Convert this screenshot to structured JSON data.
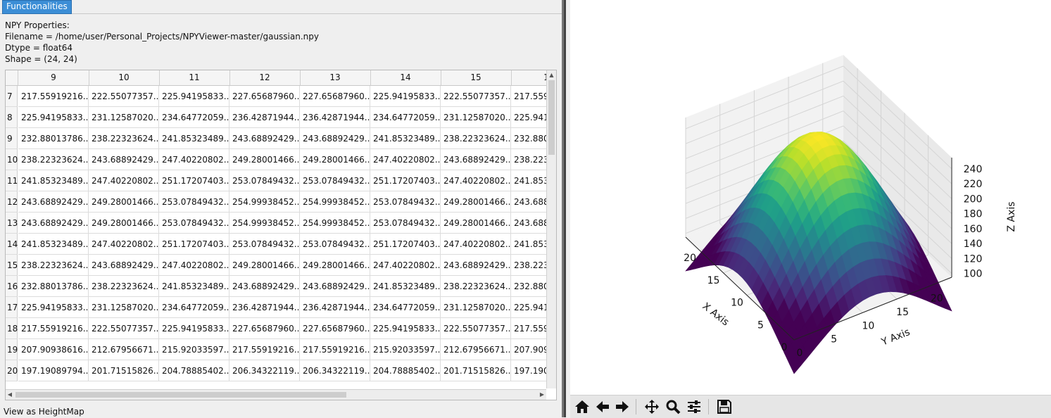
{
  "tab": {
    "label": "Functionalities"
  },
  "properties": {
    "heading": "NPY Properties:",
    "filename": "Filename = /home/user/Personal_Projects/NPYViewer-master/gaussian.npy",
    "dtype": "Dtype = float64",
    "shape": "Shape = (24, 24)"
  },
  "table": {
    "columns": [
      "9",
      "10",
      "11",
      "12",
      "13",
      "14",
      "15",
      "1"
    ],
    "rows": [
      {
        "label": "7",
        "cells": [
          "217.55919216...",
          "222.55077357...",
          "225.94195833...",
          "227.65687960...",
          "227.65687960...",
          "225.94195833...",
          "222.55077357...",
          "217.559"
        ]
      },
      {
        "label": "8",
        "cells": [
          "225.94195833...",
          "231.12587020...",
          "234.64772059...",
          "236.42871944...",
          "236.42871944...",
          "234.64772059...",
          "231.12587020...",
          "225.941"
        ]
      },
      {
        "label": "9",
        "cells": [
          "232.88013786...",
          "238.22323624...",
          "241.85323489...",
          "243.68892429...",
          "243.68892429...",
          "241.85323489...",
          "238.22323624...",
          "232.880"
        ]
      },
      {
        "label": "10",
        "cells": [
          "238.22323624...",
          "243.68892429...",
          "247.40220802...",
          "249.28001466...",
          "249.28001466...",
          "247.40220802...",
          "243.68892429...",
          "238.223"
        ]
      },
      {
        "label": "11",
        "cells": [
          "241.85323489...",
          "247.40220802...",
          "251.17207403...",
          "253.07849432...",
          "253.07849432...",
          "251.17207403...",
          "247.40220802...",
          "241.853"
        ]
      },
      {
        "label": "12",
        "cells": [
          "243.68892429...",
          "249.28001466...",
          "253.07849432...",
          "254.99938452...",
          "254.99938452...",
          "253.07849432...",
          "249.28001466...",
          "243.688"
        ]
      },
      {
        "label": "13",
        "cells": [
          "243.68892429...",
          "249.28001466...",
          "253.07849432...",
          "254.99938452...",
          "254.99938452...",
          "253.07849432...",
          "249.28001466...",
          "243.688"
        ]
      },
      {
        "label": "14",
        "cells": [
          "241.85323489...",
          "247.40220802...",
          "251.17207403...",
          "253.07849432...",
          "253.07849432...",
          "251.17207403...",
          "247.40220802...",
          "241.853"
        ]
      },
      {
        "label": "15",
        "cells": [
          "238.22323624...",
          "243.68892429...",
          "247.40220802...",
          "249.28001466...",
          "249.28001466...",
          "247.40220802...",
          "243.68892429...",
          "238.223"
        ]
      },
      {
        "label": "16",
        "cells": [
          "232.88013786...",
          "238.22323624...",
          "241.85323489...",
          "243.68892429...",
          "243.68892429...",
          "241.85323489...",
          "238.22323624...",
          "232.880"
        ]
      },
      {
        "label": "17",
        "cells": [
          "225.94195833...",
          "231.12587020...",
          "234.64772059...",
          "236.42871944...",
          "236.42871944...",
          "234.64772059...",
          "231.12587020...",
          "225.941"
        ]
      },
      {
        "label": "18",
        "cells": [
          "217.55919216...",
          "222.55077357...",
          "225.94195833...",
          "227.65687960...",
          "227.65687960...",
          "225.94195833...",
          "222.55077357...",
          "217.559"
        ]
      },
      {
        "label": "19",
        "cells": [
          "207.90938616...",
          "212.67956671...",
          "215.92033597...",
          "217.55919216...",
          "217.55919216...",
          "215.92033597...",
          "212.67956671...",
          "207.909"
        ]
      },
      {
        "label": "20",
        "cells": [
          "197.19089794...",
          "201.71515826...",
          "204.78885402...",
          "206.34322119...",
          "206.34322119...",
          "204.78885402...",
          "201.71515826...",
          "197.190"
        ]
      }
    ]
  },
  "footer": {
    "heightmap_label": "View as HeightMap"
  },
  "chart_data": {
    "type": "surface3d",
    "colormap": "viridis",
    "xlabel": "X Axis",
    "ylabel": "Y Axis",
    "zlabel": "Z Axis",
    "x_ticks": [
      "0",
      "5",
      "10",
      "15",
      "20"
    ],
    "y_ticks": [
      "0",
      "5",
      "10",
      "15",
      "20"
    ],
    "z_ticks": [
      "100",
      "120",
      "140",
      "160",
      "180",
      "200",
      "220",
      "240"
    ],
    "xlim": [
      0,
      23
    ],
    "ylim": [
      0,
      23
    ],
    "zlim": [
      95,
      255
    ],
    "grid": true,
    "surface": {
      "function": "gaussian",
      "peak": 254.99938452,
      "grid_size": [
        24,
        24
      ]
    }
  },
  "toolbar": {
    "icons": [
      "home-icon",
      "back-arrow-icon",
      "forward-arrow-icon",
      "pan-icon",
      "zoom-icon",
      "configure-subplots-icon",
      "save-icon"
    ]
  }
}
